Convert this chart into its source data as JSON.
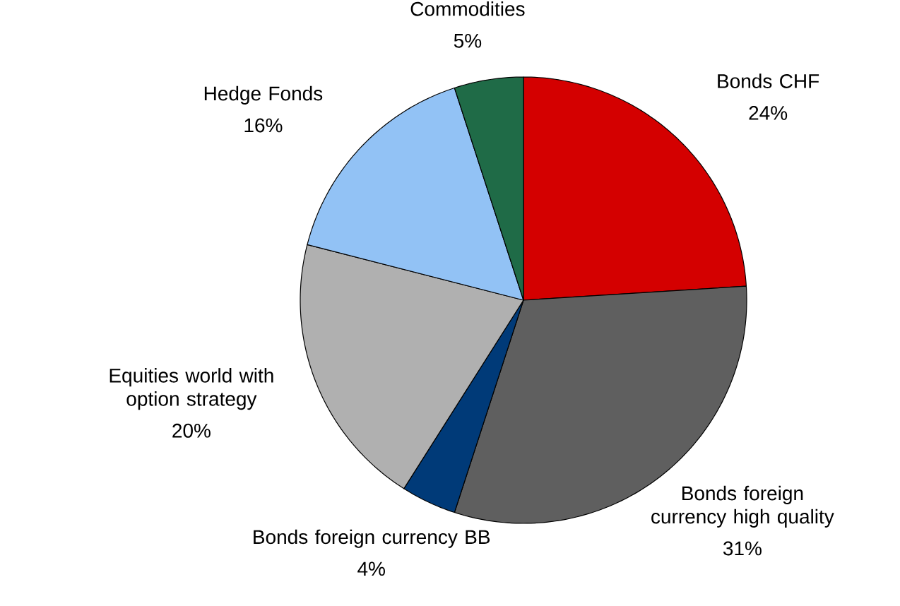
{
  "chart_data": {
    "type": "pie",
    "categories": [
      "Bonds CHF",
      "Bonds foreign currency high quality",
      "Bonds foreign currency BB",
      "Equities world with option strategy",
      "Hedge Fonds",
      "Commodities"
    ],
    "values": [
      24,
      31,
      4,
      20,
      16,
      5
    ],
    "value_labels": [
      "24%",
      "31%",
      "4%",
      "20%",
      "16%",
      "5%"
    ],
    "colors": [
      "#d40000",
      "#5f5f5f",
      "#003a78",
      "#b0b0b0",
      "#92c2f5",
      "#1f6b47"
    ]
  }
}
